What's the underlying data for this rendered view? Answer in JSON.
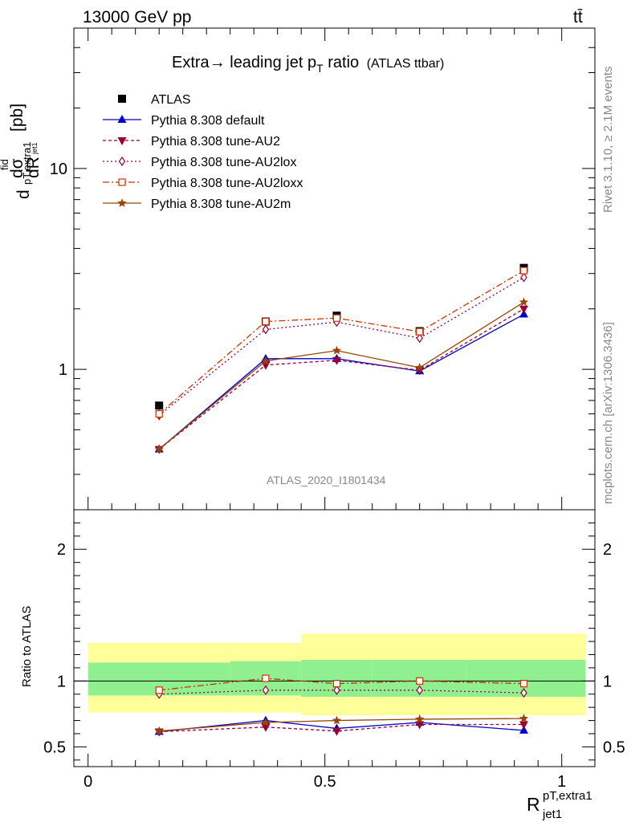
{
  "header": {
    "energy": "13000 GeV pp",
    "process": "tt̄"
  },
  "side": {
    "rivet": "Rivet 3.1.10, ≥ 2.1M events",
    "mcplots": "mcplots.cern.ch [arXiv:1306.3436]"
  },
  "chart_data": [
    {
      "type": "line",
      "title": "Extra → leading jet pT ratio (ATLAS ttbar)",
      "title_main": "Extra",
      "title_arrow": "→",
      "title_rest": " leading jet p",
      "title_sub": "T",
      "title_tail": " ratio",
      "title_small": "(ATLAS ttbar)",
      "ylabel": "dσ^fid / dR_pT,extra1,jet1 [pb]",
      "ylabel_parts": {
        "d": "d",
        "sigma": "dσ",
        "fid": "fid",
        "R": "dR",
        "pT": "pT,extra1",
        "jet": "jet1",
        "unit": "[pb]"
      },
      "yscale": "log",
      "ylim": [
        0.2,
        50
      ],
      "xlim": [
        -0.03,
        1.07
      ],
      "yticks": [
        {
          "v": 1,
          "label": "1"
        },
        {
          "v": 10,
          "label": "10"
        }
      ],
      "watermark": "ATLAS_2020_I1801434",
      "legend_position": "top-left",
      "x": [
        0.15,
        0.375,
        0.525,
        0.7,
        0.92
      ],
      "series": [
        {
          "name": "ATLAS",
          "style": "data",
          "color": "#000000",
          "marker": "square-filled",
          "dash": "",
          "values": [
            0.66,
            1.73,
            1.85,
            1.55,
            3.2
          ],
          "errors": [
            0.03,
            0.05,
            0.06,
            0.05,
            0.1
          ]
        },
        {
          "name": "Pythia 8.308 default",
          "color": "#0000cc",
          "marker": "triangle-up",
          "dash": "",
          "values": [
            0.4,
            1.13,
            1.13,
            0.98,
            1.88
          ],
          "errors": [
            0.01,
            0.02,
            0.03,
            0.02,
            0.03
          ]
        },
        {
          "name": "Pythia 8.308 tune-AU2",
          "color": "#990033",
          "marker": "triangle-down",
          "dash": "4,3",
          "values": [
            0.4,
            1.05,
            1.11,
            0.99,
            2.0
          ],
          "errors": [
            0.01,
            0.02,
            0.03,
            0.02,
            0.03
          ]
        },
        {
          "name": "Pythia 8.308 tune-AU2lox",
          "color": "#990033",
          "marker": "diamond-open",
          "dash": "2,3",
          "values": [
            0.59,
            1.58,
            1.72,
            1.43,
            2.87
          ],
          "errors": [
            0.03,
            0.04,
            0.05,
            0.04,
            0.06
          ]
        },
        {
          "name": "Pythia 8.308 tune-AU2loxx",
          "color": "#cc3300",
          "marker": "square-open",
          "dash": "8,3,2,3",
          "values": [
            0.6,
            1.73,
            1.8,
            1.54,
            3.1
          ],
          "errors": [
            0.03,
            0.04,
            0.05,
            0.04,
            0.06
          ]
        },
        {
          "name": "Pythia 8.308 tune-AU2m",
          "color": "#994400",
          "marker": "star",
          "dash": "",
          "values": [
            0.4,
            1.1,
            1.24,
            1.02,
            2.16
          ],
          "errors": [
            0.01,
            0.02,
            0.03,
            0.02,
            0.04
          ]
        }
      ]
    },
    {
      "type": "line",
      "ylabel": "Ratio to ATLAS",
      "xlabel": "R_jet1^pT,extra1",
      "xlabel_parts": {
        "R": "R",
        "sup": "pT,extra1",
        "sub": "jet1"
      },
      "yscale": "linear",
      "ylim": [
        0.35,
        2.3
      ],
      "xlim": [
        -0.03,
        1.07
      ],
      "xticks": [
        {
          "v": 0,
          "label": "0"
        },
        {
          "v": 0.5,
          "label": "0.5"
        },
        {
          "v": 1,
          "label": "1"
        }
      ],
      "yticks": [
        {
          "v": 0.5,
          "label": "0.5"
        },
        {
          "v": 1,
          "label": "1"
        },
        {
          "v": 2,
          "label": "2"
        }
      ],
      "bins": [
        [
          0,
          0.3
        ],
        [
          0.3,
          0.45
        ],
        [
          0.45,
          0.6
        ],
        [
          0.6,
          0.8
        ],
        [
          0.8,
          1.05
        ]
      ],
      "band_inner": [
        [
          0.89,
          1.14
        ],
        [
          0.89,
          1.15
        ],
        [
          0.88,
          1.16
        ],
        [
          0.88,
          1.16
        ],
        [
          0.88,
          1.16
        ]
      ],
      "band_outer": [
        [
          0.76,
          1.29
        ],
        [
          0.76,
          1.29
        ],
        [
          0.74,
          1.36
        ],
        [
          0.74,
          1.36
        ],
        [
          0.74,
          1.36
        ]
      ],
      "band_colors": {
        "inner": "#90f090",
        "outer": "#ffff99"
      },
      "x": [
        0.15,
        0.375,
        0.525,
        0.7,
        0.92
      ],
      "series": [
        {
          "name": "Pythia 8.308 default",
          "color": "#0000cc",
          "marker": "triangle-up",
          "dash": "",
          "values": [
            0.615,
            0.7,
            0.64,
            0.685,
            0.625
          ],
          "errors": [
            0.025,
            0.015,
            0.02,
            0.015,
            0.01
          ]
        },
        {
          "name": "Pythia 8.308 tune-AU2",
          "color": "#990033",
          "marker": "triangle-down",
          "dash": "4,3",
          "values": [
            0.615,
            0.65,
            0.62,
            0.67,
            0.67
          ],
          "errors": [
            0.025,
            0.015,
            0.02,
            0.015,
            0.01
          ]
        },
        {
          "name": "Pythia 8.308 tune-AU2lox",
          "color": "#990033",
          "marker": "diamond-open",
          "dash": "2,3",
          "values": [
            0.9,
            0.93,
            0.93,
            0.93,
            0.91
          ],
          "errors": [
            0.03,
            0.02,
            0.03,
            0.02,
            0.01
          ]
        },
        {
          "name": "Pythia 8.308 tune-AU2loxx",
          "color": "#cc3300",
          "marker": "square-open",
          "dash": "8,3,2,3",
          "values": [
            0.93,
            1.02,
            0.98,
            1.0,
            0.98
          ],
          "errors": [
            0.03,
            0.02,
            0.03,
            0.02,
            0.01
          ]
        },
        {
          "name": "Pythia 8.308 tune-AU2m",
          "color": "#994400",
          "marker": "star",
          "dash": "",
          "values": [
            0.62,
            0.685,
            0.7,
            0.71,
            0.715
          ],
          "errors": [
            0.025,
            0.015,
            0.02,
            0.015,
            0.01
          ]
        }
      ]
    }
  ]
}
